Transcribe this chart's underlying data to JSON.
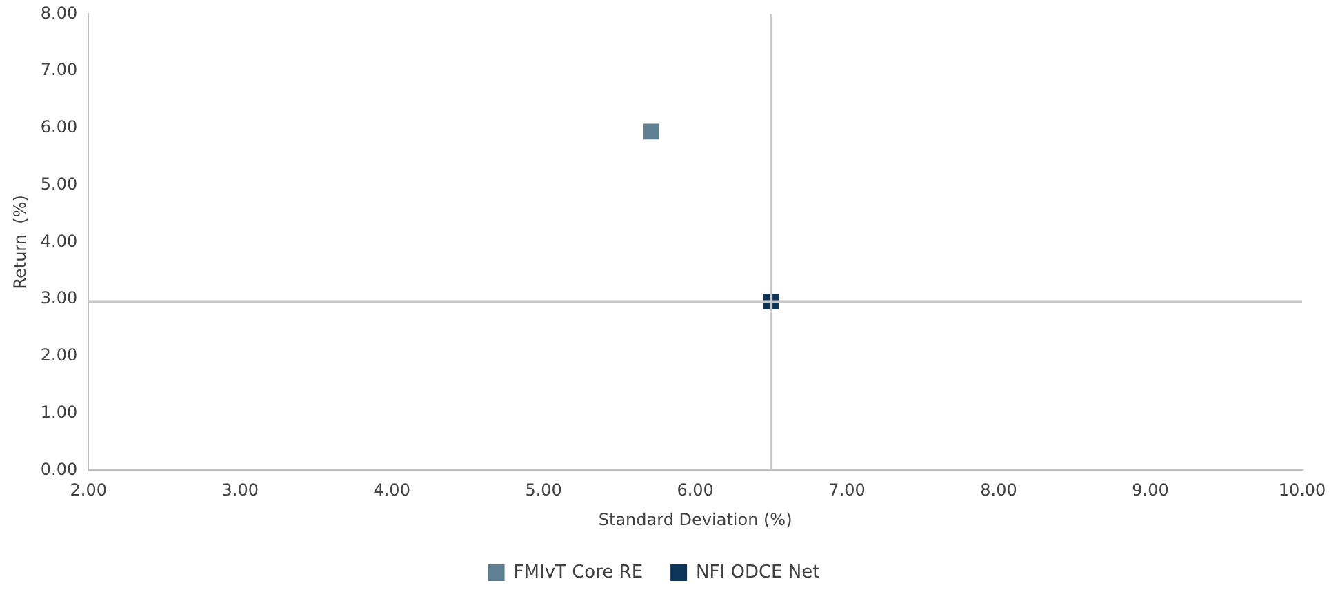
{
  "chart_data": {
    "type": "scatter",
    "xlabel": "Standard Deviation (%)",
    "ylabel": "Return  (%)",
    "xlim": [
      2,
      10
    ],
    "ylim": [
      0,
      8
    ],
    "xticks": [
      {
        "value": 2,
        "label": "2.00"
      },
      {
        "value": 3,
        "label": "3.00"
      },
      {
        "value": 4,
        "label": "4.00"
      },
      {
        "value": 5,
        "label": "5.00"
      },
      {
        "value": 6,
        "label": "6.00"
      },
      {
        "value": 7,
        "label": "7.00"
      },
      {
        "value": 8,
        "label": "8.00"
      },
      {
        "value": 9,
        "label": "9.00"
      },
      {
        "value": 10,
        "label": "10.00"
      }
    ],
    "yticks": [
      {
        "value": 0,
        "label": "0.00"
      },
      {
        "value": 1,
        "label": "1.00"
      },
      {
        "value": 2,
        "label": "2.00"
      },
      {
        "value": 3,
        "label": "3.00"
      },
      {
        "value": 4,
        "label": "4.00"
      },
      {
        "value": 5,
        "label": "5.00"
      },
      {
        "value": 6,
        "label": "6.00"
      },
      {
        "value": 7,
        "label": "7.00"
      },
      {
        "value": 8,
        "label": "8.00"
      }
    ],
    "series": [
      {
        "name": "FMIvT Core RE",
        "color": "#5f8093",
        "x": [
          5.71
        ],
        "values": [
          5.94
        ]
      },
      {
        "name": "NFI ODCE Net",
        "color": "#0c3559",
        "x": [
          6.5
        ],
        "values": [
          2.96
        ]
      }
    ],
    "ref_lines": [
      {
        "axis": "x",
        "value": 6.5,
        "color": "#c8c8c8"
      },
      {
        "axis": "y",
        "value": 2.96,
        "color": "#c8c8c8"
      }
    ],
    "marker": "square",
    "grid": false,
    "legend": "bottom"
  }
}
